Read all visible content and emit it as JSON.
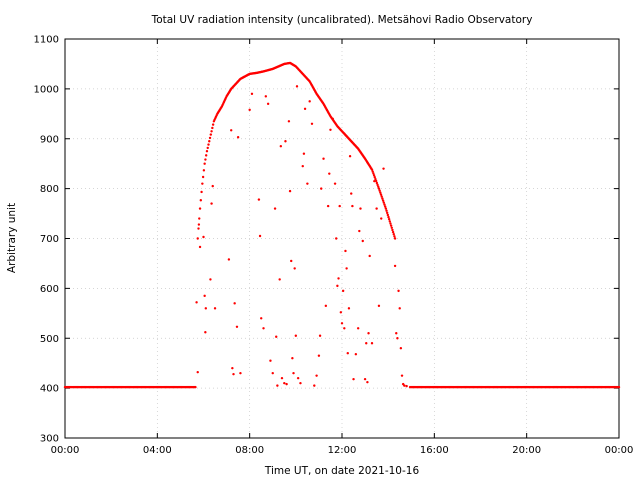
{
  "chart_data": {
    "type": "scatter",
    "title": "Total UV radiation intensity (uncalibrated). Metsähovi Radio Observatory",
    "xlabel": "Time UT, on date 2021-10-16",
    "ylabel": "Arbitrary unit",
    "xlim": [
      0,
      24
    ],
    "ylim": [
      300,
      1100
    ],
    "x_ticks": [
      0,
      4,
      8,
      12,
      16,
      20,
      24
    ],
    "x_tick_labels": [
      "00:00",
      "04:00",
      "08:00",
      "12:00",
      "16:00",
      "20:00",
      "00:00"
    ],
    "y_ticks": [
      300,
      400,
      500,
      600,
      700,
      800,
      900,
      1000,
      1100
    ],
    "y_tick_labels": [
      "300",
      "400",
      "500",
      "600",
      "700",
      "800",
      "900",
      "1000",
      "1100"
    ],
    "grid": true,
    "point_color": "#ff0000",
    "series": [
      {
        "baseline_morning": {
          "x_start": 0.0,
          "x_end": 5.67,
          "y": 402
        },
        "baseline_evening": {
          "x_start": 14.95,
          "x_end": 24.0,
          "y": 402
        },
        "envelope": [
          [
            5.75,
            700
          ],
          [
            5.85,
            760
          ],
          [
            5.95,
            810
          ],
          [
            6.05,
            850
          ],
          [
            6.15,
            875
          ],
          [
            6.25,
            895
          ],
          [
            6.35,
            915
          ],
          [
            6.45,
            935
          ],
          [
            6.6,
            950
          ],
          [
            6.8,
            965
          ],
          [
            7.0,
            985
          ],
          [
            7.2,
            1000
          ],
          [
            7.4,
            1010
          ],
          [
            7.6,
            1020
          ],
          [
            7.8,
            1025
          ],
          [
            8.0,
            1030
          ],
          [
            8.3,
            1032
          ],
          [
            8.6,
            1035
          ],
          [
            9.0,
            1040
          ],
          [
            9.5,
            1050
          ],
          [
            9.75,
            1052
          ],
          [
            10.0,
            1045
          ],
          [
            10.3,
            1030
          ],
          [
            10.6,
            1015
          ],
          [
            10.9,
            990
          ],
          [
            11.2,
            970
          ],
          [
            11.5,
            945
          ],
          [
            11.8,
            925
          ],
          [
            12.1,
            910
          ],
          [
            12.4,
            895
          ],
          [
            12.7,
            880
          ],
          [
            13.0,
            860
          ],
          [
            13.3,
            838
          ],
          [
            13.6,
            800
          ],
          [
            13.9,
            760
          ],
          [
            14.1,
            730
          ],
          [
            14.3,
            700
          ]
        ],
        "scattered": [
          [
            5.7,
            572
          ],
          [
            5.75,
            432
          ],
          [
            5.8,
            728
          ],
          [
            5.85,
            683
          ],
          [
            6.0,
            703
          ],
          [
            6.05,
            585
          ],
          [
            6.08,
            512
          ],
          [
            6.1,
            560
          ],
          [
            6.3,
            618
          ],
          [
            6.35,
            770
          ],
          [
            6.4,
            805
          ],
          [
            6.5,
            560
          ],
          [
            7.1,
            658
          ],
          [
            7.2,
            917
          ],
          [
            7.25,
            440
          ],
          [
            7.3,
            428
          ],
          [
            7.35,
            570
          ],
          [
            7.45,
            523
          ],
          [
            7.5,
            903
          ],
          [
            7.6,
            430
          ],
          [
            8.0,
            958
          ],
          [
            8.1,
            990
          ],
          [
            8.4,
            778
          ],
          [
            8.45,
            705
          ],
          [
            8.5,
            540
          ],
          [
            8.6,
            520
          ],
          [
            8.7,
            985
          ],
          [
            8.8,
            970
          ],
          [
            8.9,
            455
          ],
          [
            9.0,
            430
          ],
          [
            9.1,
            760
          ],
          [
            9.15,
            503
          ],
          [
            9.2,
            405
          ],
          [
            9.3,
            618
          ],
          [
            9.35,
            885
          ],
          [
            9.4,
            420
          ],
          [
            9.5,
            410
          ],
          [
            9.55,
            895
          ],
          [
            9.6,
            408
          ],
          [
            9.7,
            935
          ],
          [
            9.75,
            795
          ],
          [
            9.8,
            655
          ],
          [
            9.85,
            460
          ],
          [
            9.9,
            430
          ],
          [
            9.95,
            640
          ],
          [
            10.0,
            505
          ],
          [
            10.05,
            1005
          ],
          [
            10.1,
            420
          ],
          [
            10.2,
            410
          ],
          [
            10.3,
            845
          ],
          [
            10.35,
            870
          ],
          [
            10.4,
            960
          ],
          [
            10.5,
            810
          ],
          [
            10.6,
            975
          ],
          [
            10.7,
            930
          ],
          [
            10.8,
            405
          ],
          [
            10.9,
            425
          ],
          [
            11.0,
            465
          ],
          [
            11.05,
            505
          ],
          [
            11.1,
            800
          ],
          [
            11.2,
            860
          ],
          [
            11.3,
            565
          ],
          [
            11.4,
            765
          ],
          [
            11.45,
            830
          ],
          [
            11.5,
            918
          ],
          [
            11.6,
            940
          ],
          [
            11.7,
            810
          ],
          [
            11.75,
            700
          ],
          [
            11.8,
            605
          ],
          [
            11.85,
            620
          ],
          [
            11.9,
            765
          ],
          [
            11.95,
            552
          ],
          [
            12.0,
            530
          ],
          [
            12.05,
            595
          ],
          [
            12.1,
            520
          ],
          [
            12.15,
            675
          ],
          [
            12.2,
            640
          ],
          [
            12.25,
            470
          ],
          [
            12.3,
            560
          ],
          [
            12.35,
            865
          ],
          [
            12.4,
            790
          ],
          [
            12.45,
            765
          ],
          [
            12.5,
            418
          ],
          [
            12.6,
            468
          ],
          [
            12.7,
            520
          ],
          [
            12.75,
            715
          ],
          [
            12.8,
            760
          ],
          [
            12.9,
            695
          ],
          [
            13.0,
            418
          ],
          [
            13.05,
            490
          ],
          [
            13.1,
            412
          ],
          [
            13.15,
            510
          ],
          [
            13.2,
            665
          ],
          [
            13.3,
            490
          ],
          [
            13.4,
            815
          ],
          [
            13.5,
            760
          ],
          [
            13.6,
            565
          ],
          [
            13.7,
            740
          ],
          [
            13.8,
            840
          ],
          [
            14.3,
            645
          ],
          [
            14.35,
            510
          ],
          [
            14.4,
            500
          ],
          [
            14.45,
            595
          ],
          [
            14.5,
            560
          ],
          [
            14.55,
            480
          ],
          [
            14.6,
            425
          ],
          [
            14.65,
            408
          ],
          [
            14.7,
            405
          ],
          [
            14.8,
            404
          ]
        ]
      }
    ]
  }
}
